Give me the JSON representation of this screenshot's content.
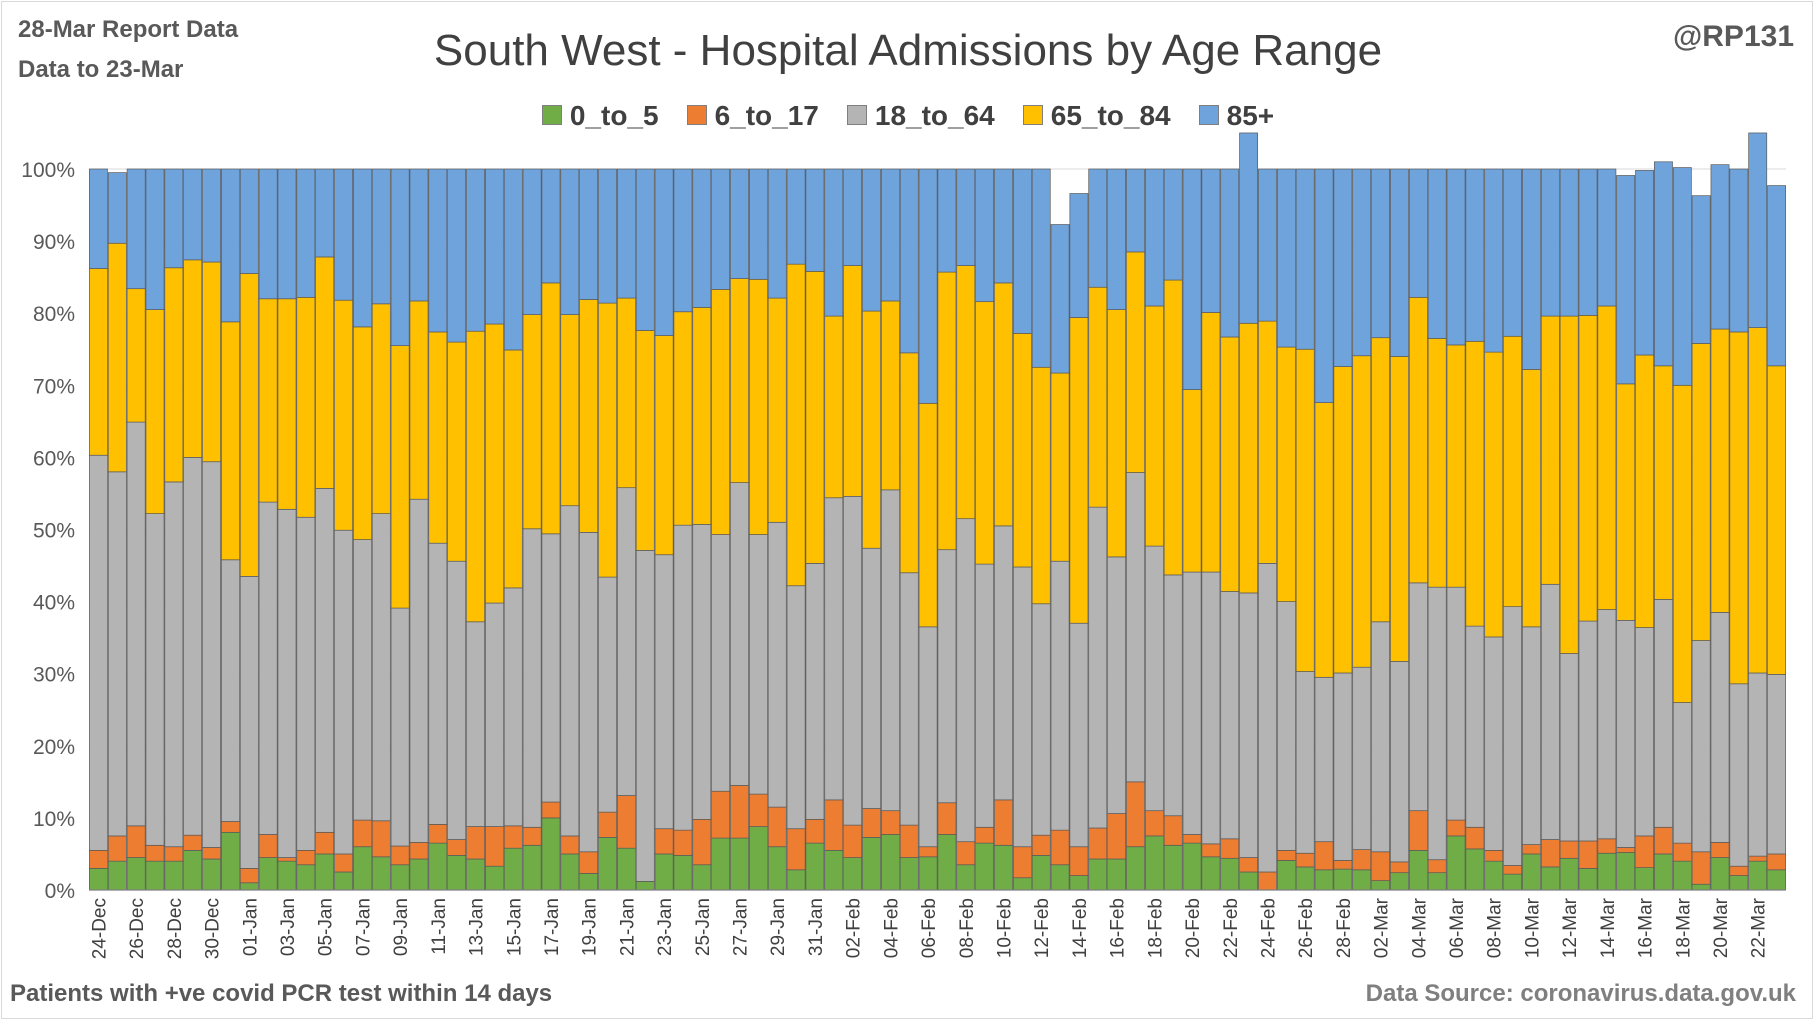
{
  "header": {
    "report_date": "28-Mar Report Data",
    "data_to": "Data to 23-Mar",
    "handle": "@RP131"
  },
  "footer": {
    "note": "Patients with  +ve covid PCR test within 14 days",
    "source": "Data Source: coronavirus.data.gov.uk"
  },
  "colors": {
    "0_to_5": "#70ad47",
    "6_to_17": "#ed7d31",
    "18_to_64": "#b4b4b4",
    "65_to_84": "#ffc000",
    "85+": "#6fa3dc"
  },
  "chart_data": {
    "type": "bar",
    "stacked": true,
    "percent": true,
    "title": "South West - Hospital Admissions by Age Range",
    "xlabel": "",
    "ylabel": "",
    "ylim": [
      0,
      100
    ],
    "yticks": [
      "0%",
      "10%",
      "20%",
      "30%",
      "40%",
      "50%",
      "60%",
      "70%",
      "80%",
      "90%",
      "100%"
    ],
    "grid": true,
    "legend_position": "top",
    "tick_labels": [
      "24-Dec",
      "26-Dec",
      "28-Dec",
      "30-Dec",
      "01-Jan",
      "03-Jan",
      "05-Jan",
      "07-Jan",
      "09-Jan",
      "11-Jan",
      "13-Jan",
      "15-Jan",
      "17-Jan",
      "19-Jan",
      "21-Jan",
      "23-Jan",
      "25-Jan",
      "27-Jan",
      "29-Jan",
      "31-Jan",
      "02-Feb",
      "04-Feb",
      "06-Feb",
      "08-Feb",
      "10-Feb",
      "12-Feb",
      "14-Feb",
      "16-Feb",
      "18-Feb",
      "20-Feb",
      "22-Feb",
      "24-Feb",
      "26-Feb",
      "28-Feb",
      "02-Mar",
      "04-Mar",
      "06-Mar",
      "08-Mar",
      "10-Mar",
      "12-Mar",
      "14-Mar",
      "16-Mar",
      "18-Mar",
      "20-Mar",
      "22-Mar"
    ],
    "categories": [
      "24-Dec",
      "25-Dec",
      "26-Dec",
      "27-Dec",
      "28-Dec",
      "29-Dec",
      "30-Dec",
      "31-Dec",
      "01-Jan",
      "02-Jan",
      "03-Jan",
      "04-Jan",
      "05-Jan",
      "06-Jan",
      "07-Jan",
      "08-Jan",
      "09-Jan",
      "10-Jan",
      "11-Jan",
      "12-Jan",
      "13-Jan",
      "14-Jan",
      "15-Jan",
      "16-Jan",
      "17-Jan",
      "18-Jan",
      "19-Jan",
      "20-Jan",
      "21-Jan",
      "22-Jan",
      "23-Jan",
      "24-Jan",
      "25-Jan",
      "26-Jan",
      "27-Jan",
      "28-Jan",
      "29-Jan",
      "30-Jan",
      "31-Jan",
      "01-Feb",
      "02-Feb",
      "03-Feb",
      "04-Feb",
      "05-Feb",
      "06-Feb",
      "07-Feb",
      "08-Feb",
      "09-Feb",
      "10-Feb",
      "11-Feb",
      "12-Feb",
      "13-Feb",
      "14-Feb",
      "15-Feb",
      "16-Feb",
      "17-Feb",
      "18-Feb",
      "19-Feb",
      "20-Feb",
      "21-Feb",
      "22-Feb",
      "23-Feb",
      "24-Feb",
      "25-Feb",
      "26-Feb",
      "27-Feb",
      "28-Feb",
      "01-Mar",
      "02-Mar",
      "03-Mar",
      "04-Mar",
      "05-Mar",
      "06-Mar",
      "07-Mar",
      "08-Mar",
      "09-Mar",
      "10-Mar",
      "11-Mar",
      "12-Mar",
      "13-Mar",
      "14-Mar",
      "15-Mar",
      "16-Mar",
      "17-Mar",
      "18-Mar",
      "19-Mar",
      "20-Mar",
      "21-Mar",
      "22-Mar",
      "23-Mar"
    ],
    "series": [
      {
        "name": "0_to_5",
        "values": [
          3,
          4,
          4.5,
          4,
          4,
          5.5,
          4.3,
          8,
          1,
          4.5,
          4,
          3.5,
          5,
          2.5,
          6,
          4.6,
          3.5,
          4.3,
          6.5,
          4.8,
          4.3,
          3.3,
          5.8,
          6.2,
          10,
          5,
          2.3,
          7.3,
          5.8,
          1.2,
          5,
          4.8,
          3.5,
          7.2,
          7.2,
          8.8,
          6,
          2.8,
          6.5,
          5.5,
          4.5,
          7.3,
          7.7,
          4.5,
          4.6,
          7.7,
          3.5,
          6.5,
          6.2,
          1.7,
          4.8,
          3.5,
          2,
          4.3,
          4.3,
          6,
          7.5,
          6.2,
          6.5,
          4.6,
          4.4,
          2.5,
          0,
          4.1,
          3.2,
          2.8,
          2.9,
          2.8,
          1.3,
          2.4,
          5.5,
          2.4,
          7.5,
          5.7,
          4,
          2.2,
          5,
          3.2,
          4.4,
          3,
          5.1,
          5.2,
          3.1,
          5,
          4,
          0.8,
          4.5,
          2,
          4,
          2.8
        ]
      },
      {
        "name": "6_to_17",
        "values": [
          2.5,
          3.5,
          4.4,
          2.2,
          2,
          2.1,
          1.6,
          1.5,
          2,
          3.2,
          0.5,
          2,
          3,
          2.5,
          3.7,
          5,
          2.6,
          2.3,
          2.6,
          2.2,
          4.5,
          5.5,
          3.1,
          2.5,
          2.2,
          2.5,
          3,
          3.5,
          7.3,
          0,
          3.5,
          3.5,
          6.3,
          6.5,
          7.3,
          4.5,
          5.5,
          5.7,
          3.3,
          7,
          4.5,
          4,
          3.3,
          4.5,
          1.4,
          4.4,
          3.2,
          2.2,
          6.3,
          4.3,
          2.8,
          4.8,
          4,
          4.3,
          6.3,
          9,
          3.5,
          4.1,
          1.2,
          1.8,
          2.7,
          2,
          2.5,
          1.4,
          1.9,
          3.9,
          1.2,
          2.8,
          4,
          1.5,
          5.5,
          1.8,
          2.2,
          3,
          1.5,
          1.2,
          1.3,
          3.8,
          2.4,
          3.8,
          2,
          0.7,
          4.4,
          3.7,
          2.5,
          4.5,
          2.1,
          1.3,
          0.7,
          2.2
        ]
      },
      {
        "name": "18_to_64",
        "values": [
          54.8,
          50.5,
          56,
          46,
          50.6,
          52.4,
          53.5,
          36.3,
          40.5,
          46.1,
          48.3,
          46.2,
          47.7,
          44.9,
          38.9,
          42.6,
          33,
          47.6,
          39,
          38.6,
          28.4,
          31,
          33,
          41.4,
          37.2,
          45.8,
          44.3,
          32.6,
          42.7,
          45.9,
          38,
          42.3,
          40.9,
          35.6,
          42,
          36,
          39.5,
          33.7,
          35.5,
          41.9,
          45.6,
          36.1,
          44.5,
          35,
          30.5,
          35.1,
          44.8,
          36.5,
          38,
          38.8,
          32.1,
          37.3,
          31,
          44.5,
          35.6,
          42.9,
          36.7,
          33.4,
          36.4,
          37.7,
          34.3,
          36.7,
          42.8,
          34.5,
          25.2,
          22.8,
          26,
          25.3,
          31.9,
          27.8,
          31.6,
          37.8,
          32.3,
          27.9,
          29.6,
          35.9,
          30.2,
          35.4,
          26,
          30.5,
          31.8,
          31.5,
          28.9,
          31.6,
          19.5,
          29.3,
          31.9,
          25.3,
          25.4,
          24.9
        ]
      },
      {
        "name": "65_to_84",
        "values": [
          25.9,
          31.7,
          18.5,
          28.3,
          29.7,
          27.4,
          27.7,
          33,
          42,
          28.2,
          29.2,
          30.5,
          32.1,
          31.9,
          29.5,
          29.1,
          36.4,
          27.5,
          29.3,
          30.4,
          40.3,
          38.7,
          33,
          29.7,
          34.8,
          26.5,
          32.3,
          38,
          26.3,
          30.5,
          30.4,
          29.6,
          30.1,
          34,
          28.3,
          35.4,
          31.1,
          44.6,
          40.5,
          25.2,
          32,
          32.9,
          26.2,
          30.5,
          31,
          38.5,
          35.1,
          36.4,
          33.7,
          32.4,
          32.8,
          26.1,
          42.4,
          30.5,
          34.3,
          30.6,
          33.3,
          40.9,
          25.3,
          36,
          35.3,
          37.4,
          33.6,
          35.3,
          44.7,
          38.1,
          42.5,
          43.2,
          39.4,
          42.3,
          39.6,
          34.5,
          33.6,
          39.5,
          39.5,
          37.5,
          35.7,
          37.2,
          46.8,
          42.4,
          42.1,
          32.8,
          37.8,
          32.4,
          44,
          41.2,
          39.3,
          48.8,
          47.9,
          42.8
        ]
      },
      {
        "name": "85+",
        "values": [
          13.8,
          9.8,
          16.6,
          19.5,
          13.7,
          12.6,
          12.9,
          21.2,
          14.5,
          18,
          18,
          17.8,
          12.2,
          18.2,
          21.9,
          18.7,
          24.5,
          18.3,
          22.6,
          24,
          22.5,
          21.5,
          25.1,
          20.2,
          15.8,
          20.2,
          18.1,
          18.6,
          17.9,
          22.4,
          23.1,
          19.8,
          19.2,
          16.7,
          15.2,
          15.3,
          17.9,
          13.2,
          14.2,
          20.4,
          13.4,
          19.7,
          18.3,
          25.5,
          32.5,
          14.3,
          13.4,
          18.4,
          15.8,
          22.8,
          27.5,
          20.6,
          17.2,
          16.4,
          19.5,
          11.5,
          19,
          15.4,
          30.6,
          19.9,
          23.3,
          26.4,
          21.1,
          24.7,
          25,
          32.4,
          27.4,
          25.9,
          23.4,
          26,
          17.8,
          23.5,
          24.4,
          23.9,
          25.4,
          23.2,
          27.8,
          20.4,
          20.4,
          20.3,
          19,
          28.9,
          25.6,
          28.3,
          30.2,
          20.5,
          22.8,
          22.6,
          27,
          25
        ]
      }
    ]
  }
}
